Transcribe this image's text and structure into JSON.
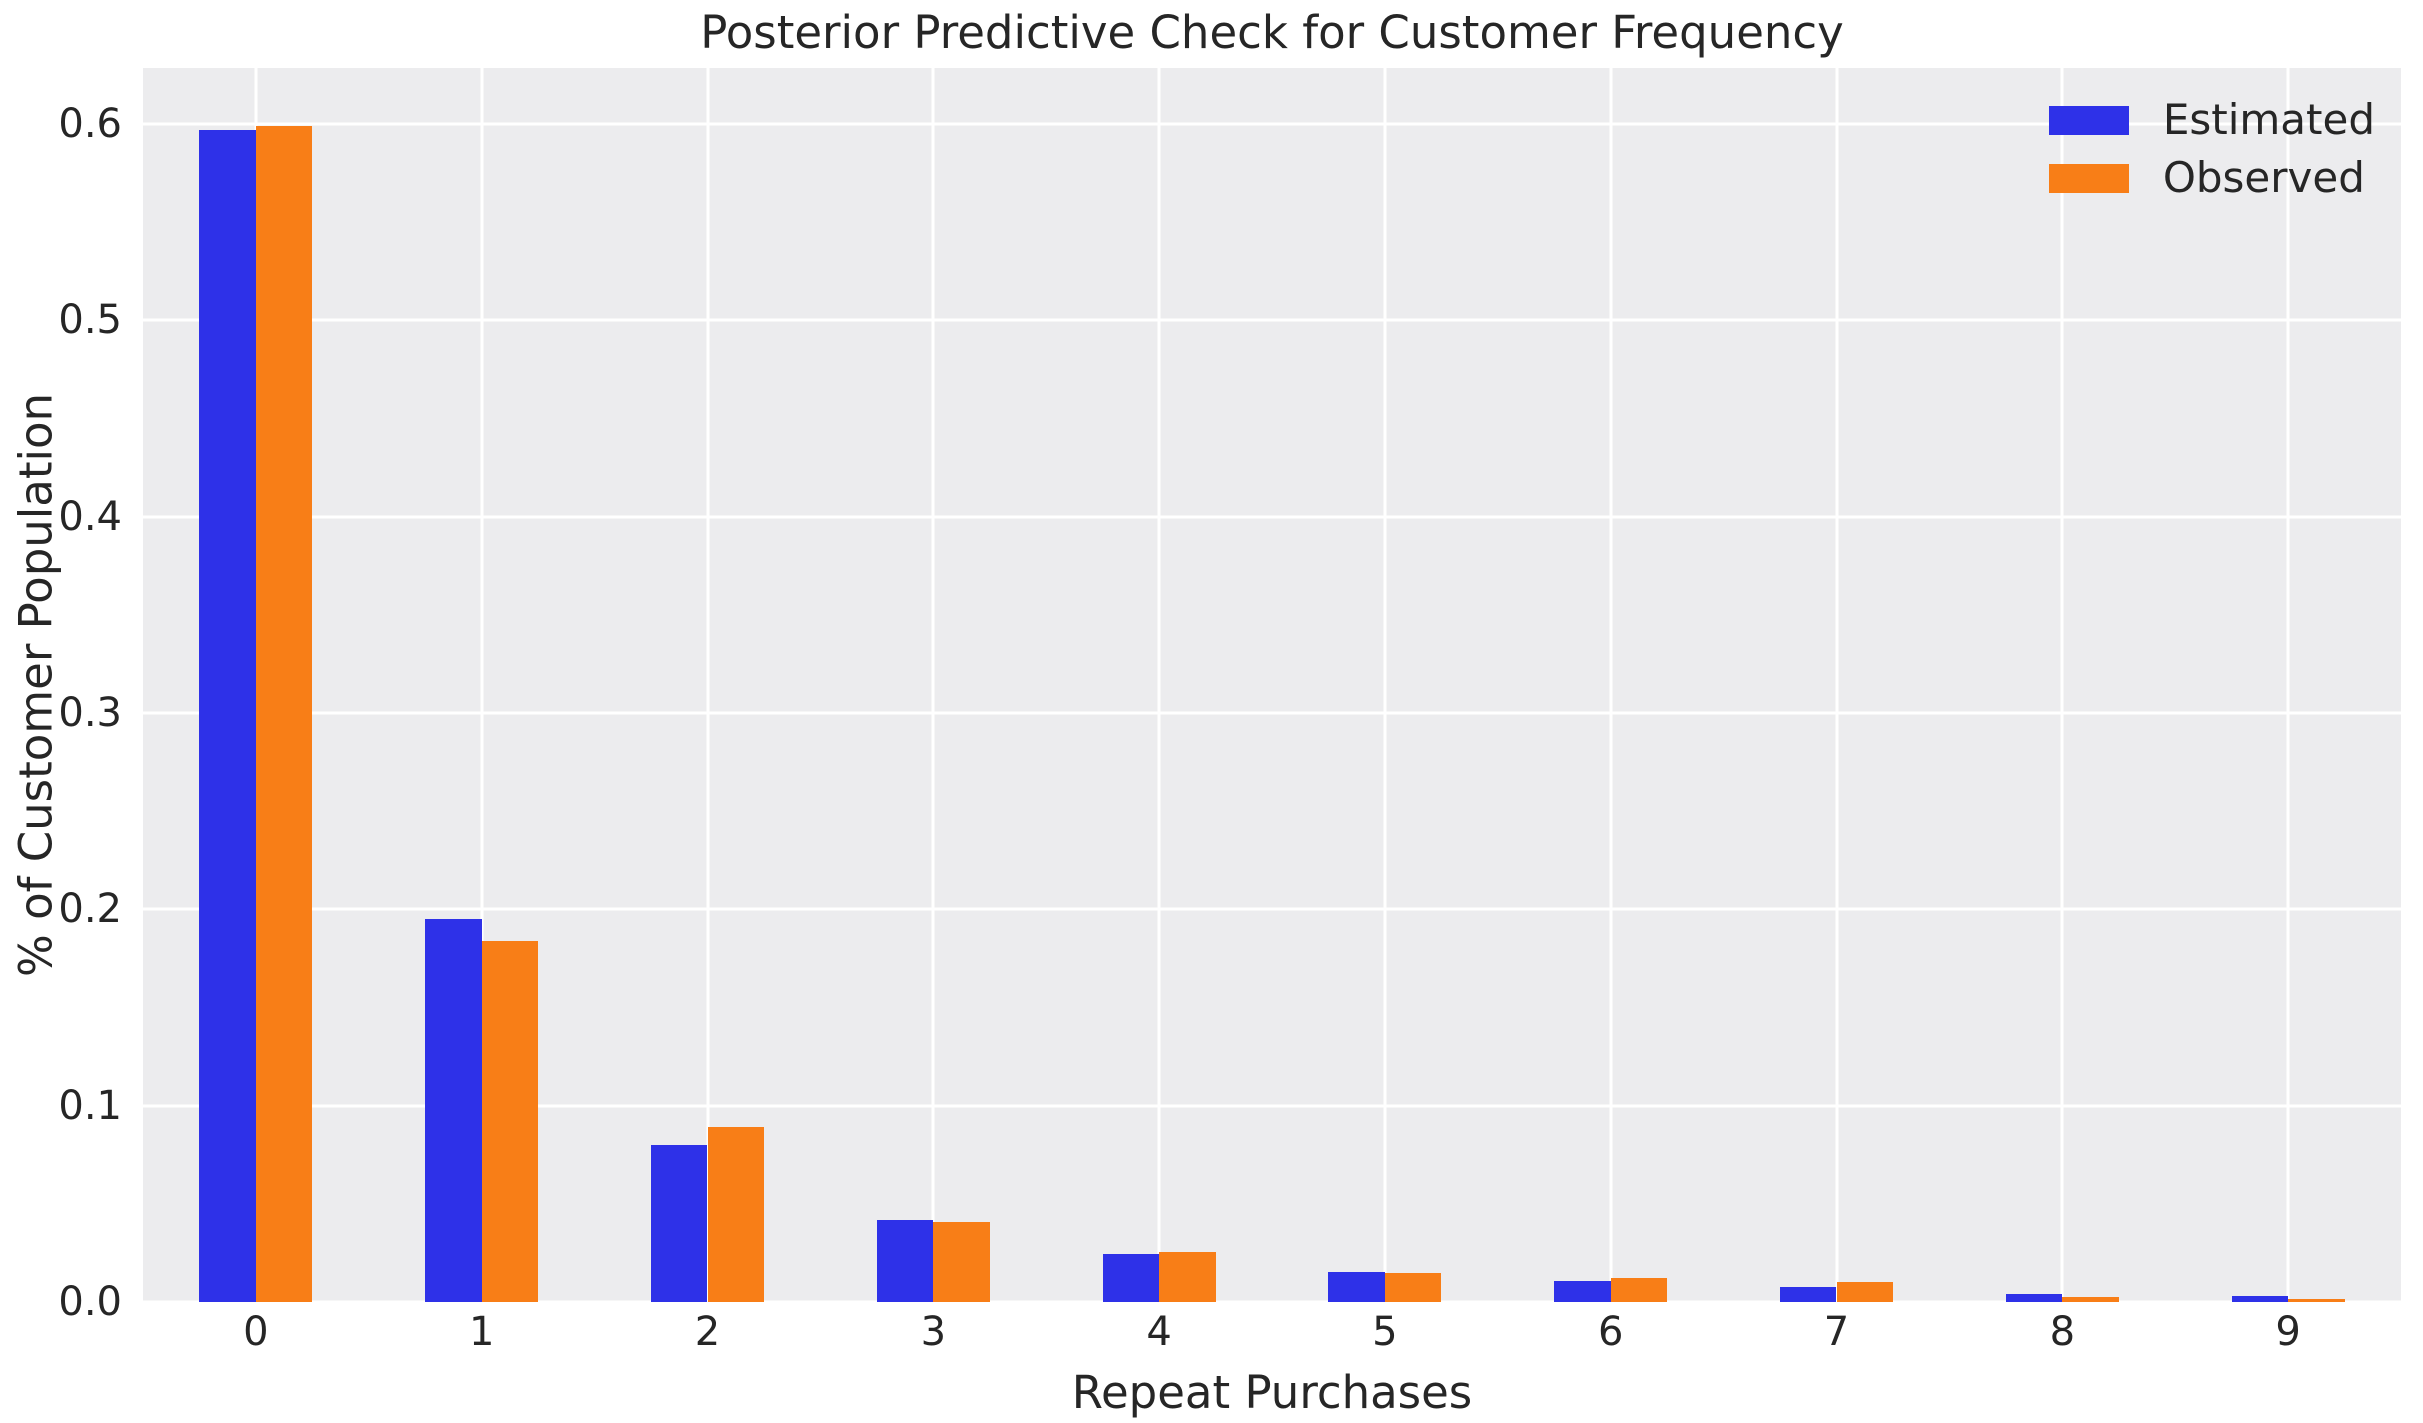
{
  "title": "Posterior Predictive Check for Customer Frequency",
  "legend": {
    "items": [
      {
        "label": "Estimated",
        "color": "#2e31e8"
      },
      {
        "label": "Observed",
        "color": "#f87e17"
      }
    ]
  },
  "axes": {
    "xlabel": "Repeat Purchases",
    "ylabel": "% of Customer Population",
    "xticklabels": [
      "0",
      "1",
      "2",
      "3",
      "4",
      "5",
      "6",
      "7",
      "8",
      "9"
    ],
    "yticklabels": [
      "0.0",
      "0.1",
      "0.2",
      "0.3",
      "0.4",
      "0.5",
      "0.6"
    ]
  },
  "chart_data": {
    "type": "bar",
    "title": "Posterior Predictive Check for Customer Frequency",
    "xlabel": "Repeat Purchases",
    "ylabel": "% of Customer Population",
    "categories": [
      "0",
      "1",
      "2",
      "3",
      "4",
      "5",
      "6",
      "7",
      "8",
      "9"
    ],
    "series": [
      {
        "name": "Estimated",
        "color": "#2e31e8",
        "values": [
          0.597,
          0.195,
          0.08,
          0.042,
          0.0245,
          0.0155,
          0.0105,
          0.0075,
          0.004,
          0.003
        ]
      },
      {
        "name": "Observed",
        "color": "#f87e17",
        "values": [
          0.599,
          0.184,
          0.089,
          0.041,
          0.0255,
          0.015,
          0.012,
          0.01,
          0.0025,
          0.0015
        ]
      }
    ],
    "yticks": [
      0.0,
      0.1,
      0.2,
      0.3,
      0.4,
      0.5,
      0.6
    ],
    "ylim": [
      0,
      0.6286
    ],
    "grid": true,
    "grid_color": "#ffffff",
    "plot_background": "#ececee",
    "text_color": "#262626",
    "legend_position": "upper right",
    "legend_frame": false,
    "bar_group_width": 0.5
  }
}
